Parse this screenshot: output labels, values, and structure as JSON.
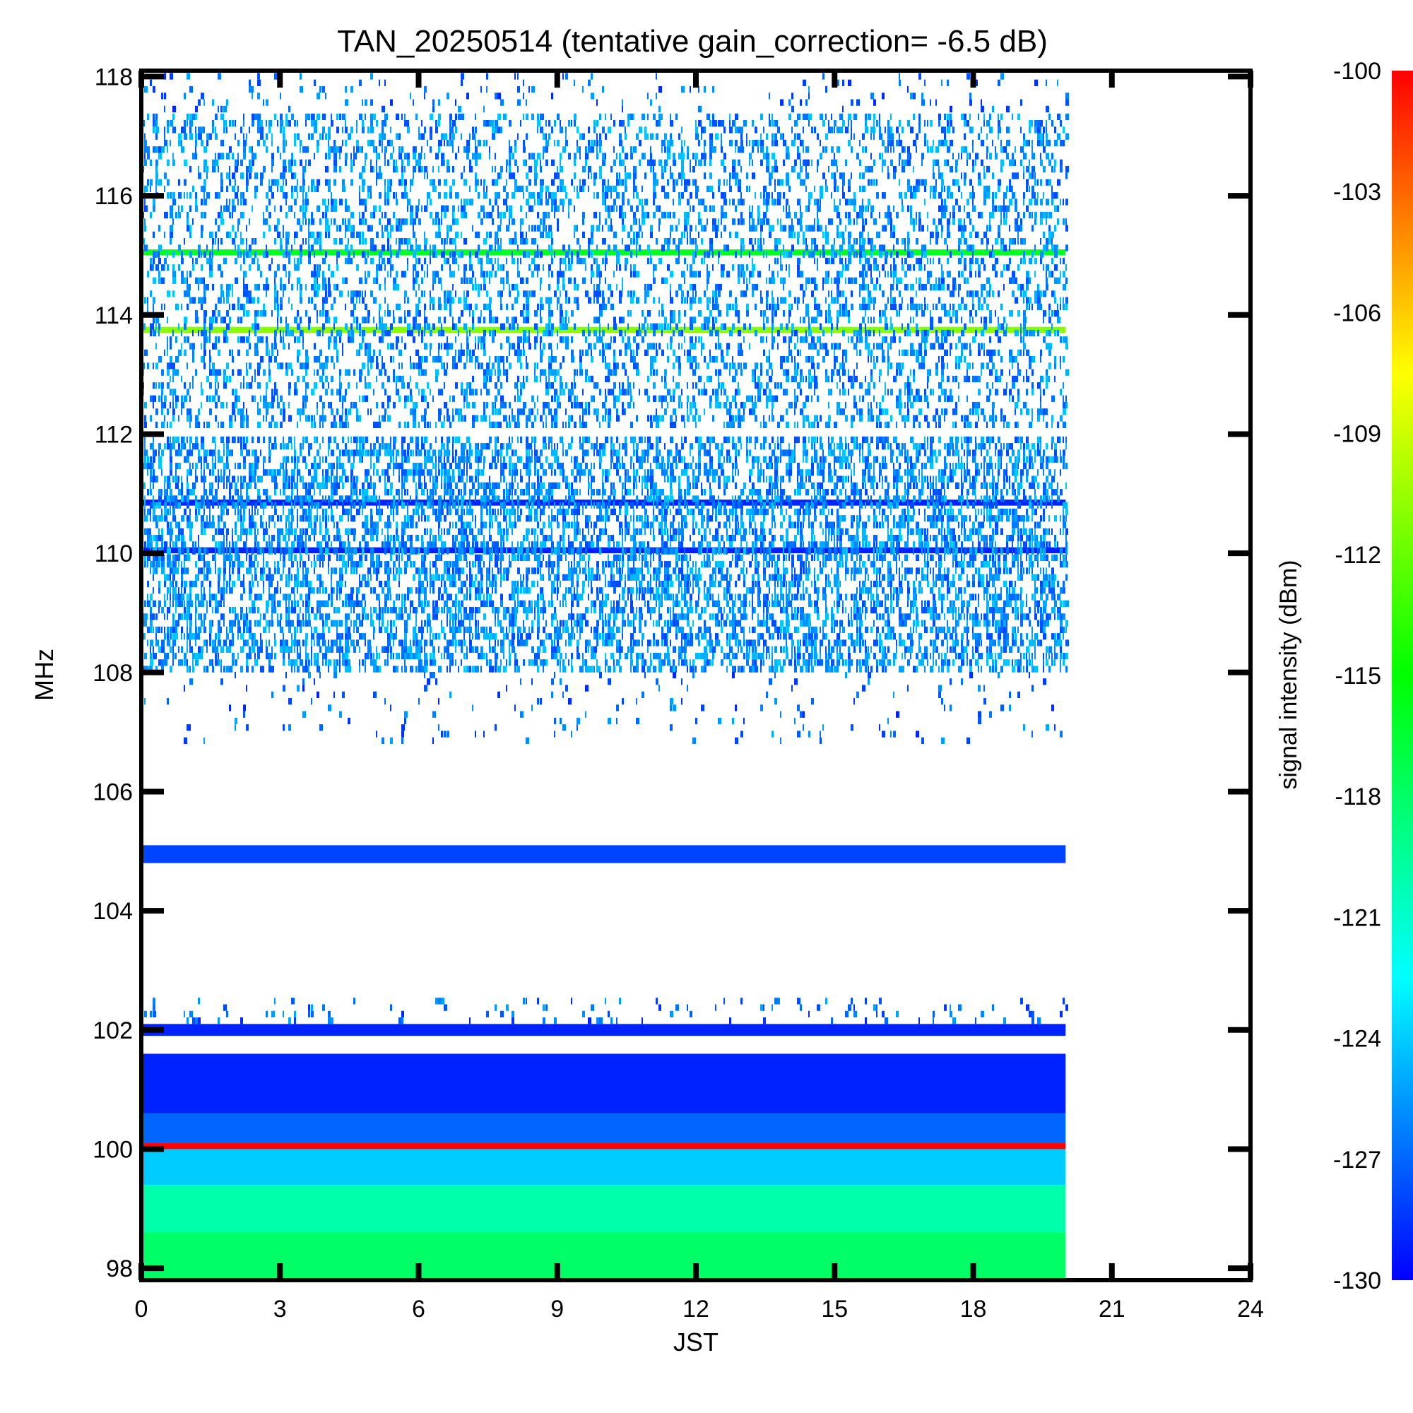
{
  "chart_data": {
    "type": "heatmap",
    "title": "TAN_20250514 (tentative gain_correction= -6.5 dB)",
    "xlabel": "JST",
    "ylabel": "MHz",
    "colorbar_label": "signal intensity (dBm)",
    "xlim": [
      0,
      24
    ],
    "ylim": [
      97.8,
      118.1
    ],
    "xticks": [
      0,
      3,
      6,
      9,
      12,
      15,
      18,
      21,
      24
    ],
    "xtick_labels": [
      "0",
      "3",
      "6",
      "9",
      "12",
      "15",
      "18",
      "21",
      "24"
    ],
    "yticks": [
      98,
      100,
      102,
      104,
      106,
      108,
      110,
      112,
      114,
      116,
      118
    ],
    "ytick_labels": [
      "98",
      "100",
      "102",
      "104",
      "106",
      "108",
      "110",
      "112",
      "114",
      "116",
      "118"
    ],
    "colorbar_range": [
      -130,
      -100
    ],
    "colorbar_ticks": [
      -100,
      -103,
      -106,
      -109,
      -112,
      -115,
      -118,
      -121,
      -124,
      -127,
      -130
    ],
    "colorbar_tick_labels": [
      "-100",
      "-103",
      "-106",
      "-109",
      "-112",
      "-115",
      "-118",
      "-121",
      "-124",
      "-127",
      "-130"
    ],
    "colormap": [
      "#0000ff",
      "#0080ff",
      "#00ffff",
      "#00ff80",
      "#00ff00",
      "#80ff00",
      "#ffff00",
      "#ff8000",
      "#ff0000"
    ],
    "data_time_range": [
      0,
      20
    ],
    "bands": [
      {
        "fmin": 97.8,
        "fmax": 98.6,
        "dbm": -118
      },
      {
        "fmin": 98.6,
        "fmax": 99.4,
        "dbm": -120
      },
      {
        "fmin": 99.4,
        "fmax": 100.0,
        "dbm": -124
      },
      {
        "fmin": 100.0,
        "fmax": 100.1,
        "dbm": -100
      },
      {
        "fmin": 100.1,
        "fmax": 100.6,
        "dbm": -127
      },
      {
        "fmin": 100.6,
        "fmax": 101.6,
        "dbm": -129
      },
      {
        "fmin": 101.9,
        "fmax": 102.1,
        "dbm": -129
      },
      {
        "fmin": 104.8,
        "fmax": 105.1,
        "dbm": -128
      },
      {
        "fmin": 110.0,
        "fmax": 110.1,
        "dbm": -129
      },
      {
        "fmin": 110.8,
        "fmax": 110.9,
        "dbm": -129
      },
      {
        "fmin": 113.7,
        "fmax": 113.8,
        "dbm": -111
      },
      {
        "fmin": 115.0,
        "fmax": 115.1,
        "dbm": -116
      }
    ],
    "noise_regions": [
      {
        "fmin": 108.0,
        "fmax": 111.9,
        "density": 0.55,
        "dbm": -128
      },
      {
        "fmin": 112.1,
        "fmax": 117.3,
        "density": 0.35,
        "dbm": -128
      },
      {
        "fmin": 117.4,
        "fmax": 118.0,
        "density": 0.08,
        "dbm": -129
      },
      {
        "fmin": 106.8,
        "fmax": 108.0,
        "density": 0.05,
        "dbm": -129
      },
      {
        "fmin": 102.1,
        "fmax": 102.5,
        "density": 0.08,
        "dbm": -129
      }
    ]
  }
}
